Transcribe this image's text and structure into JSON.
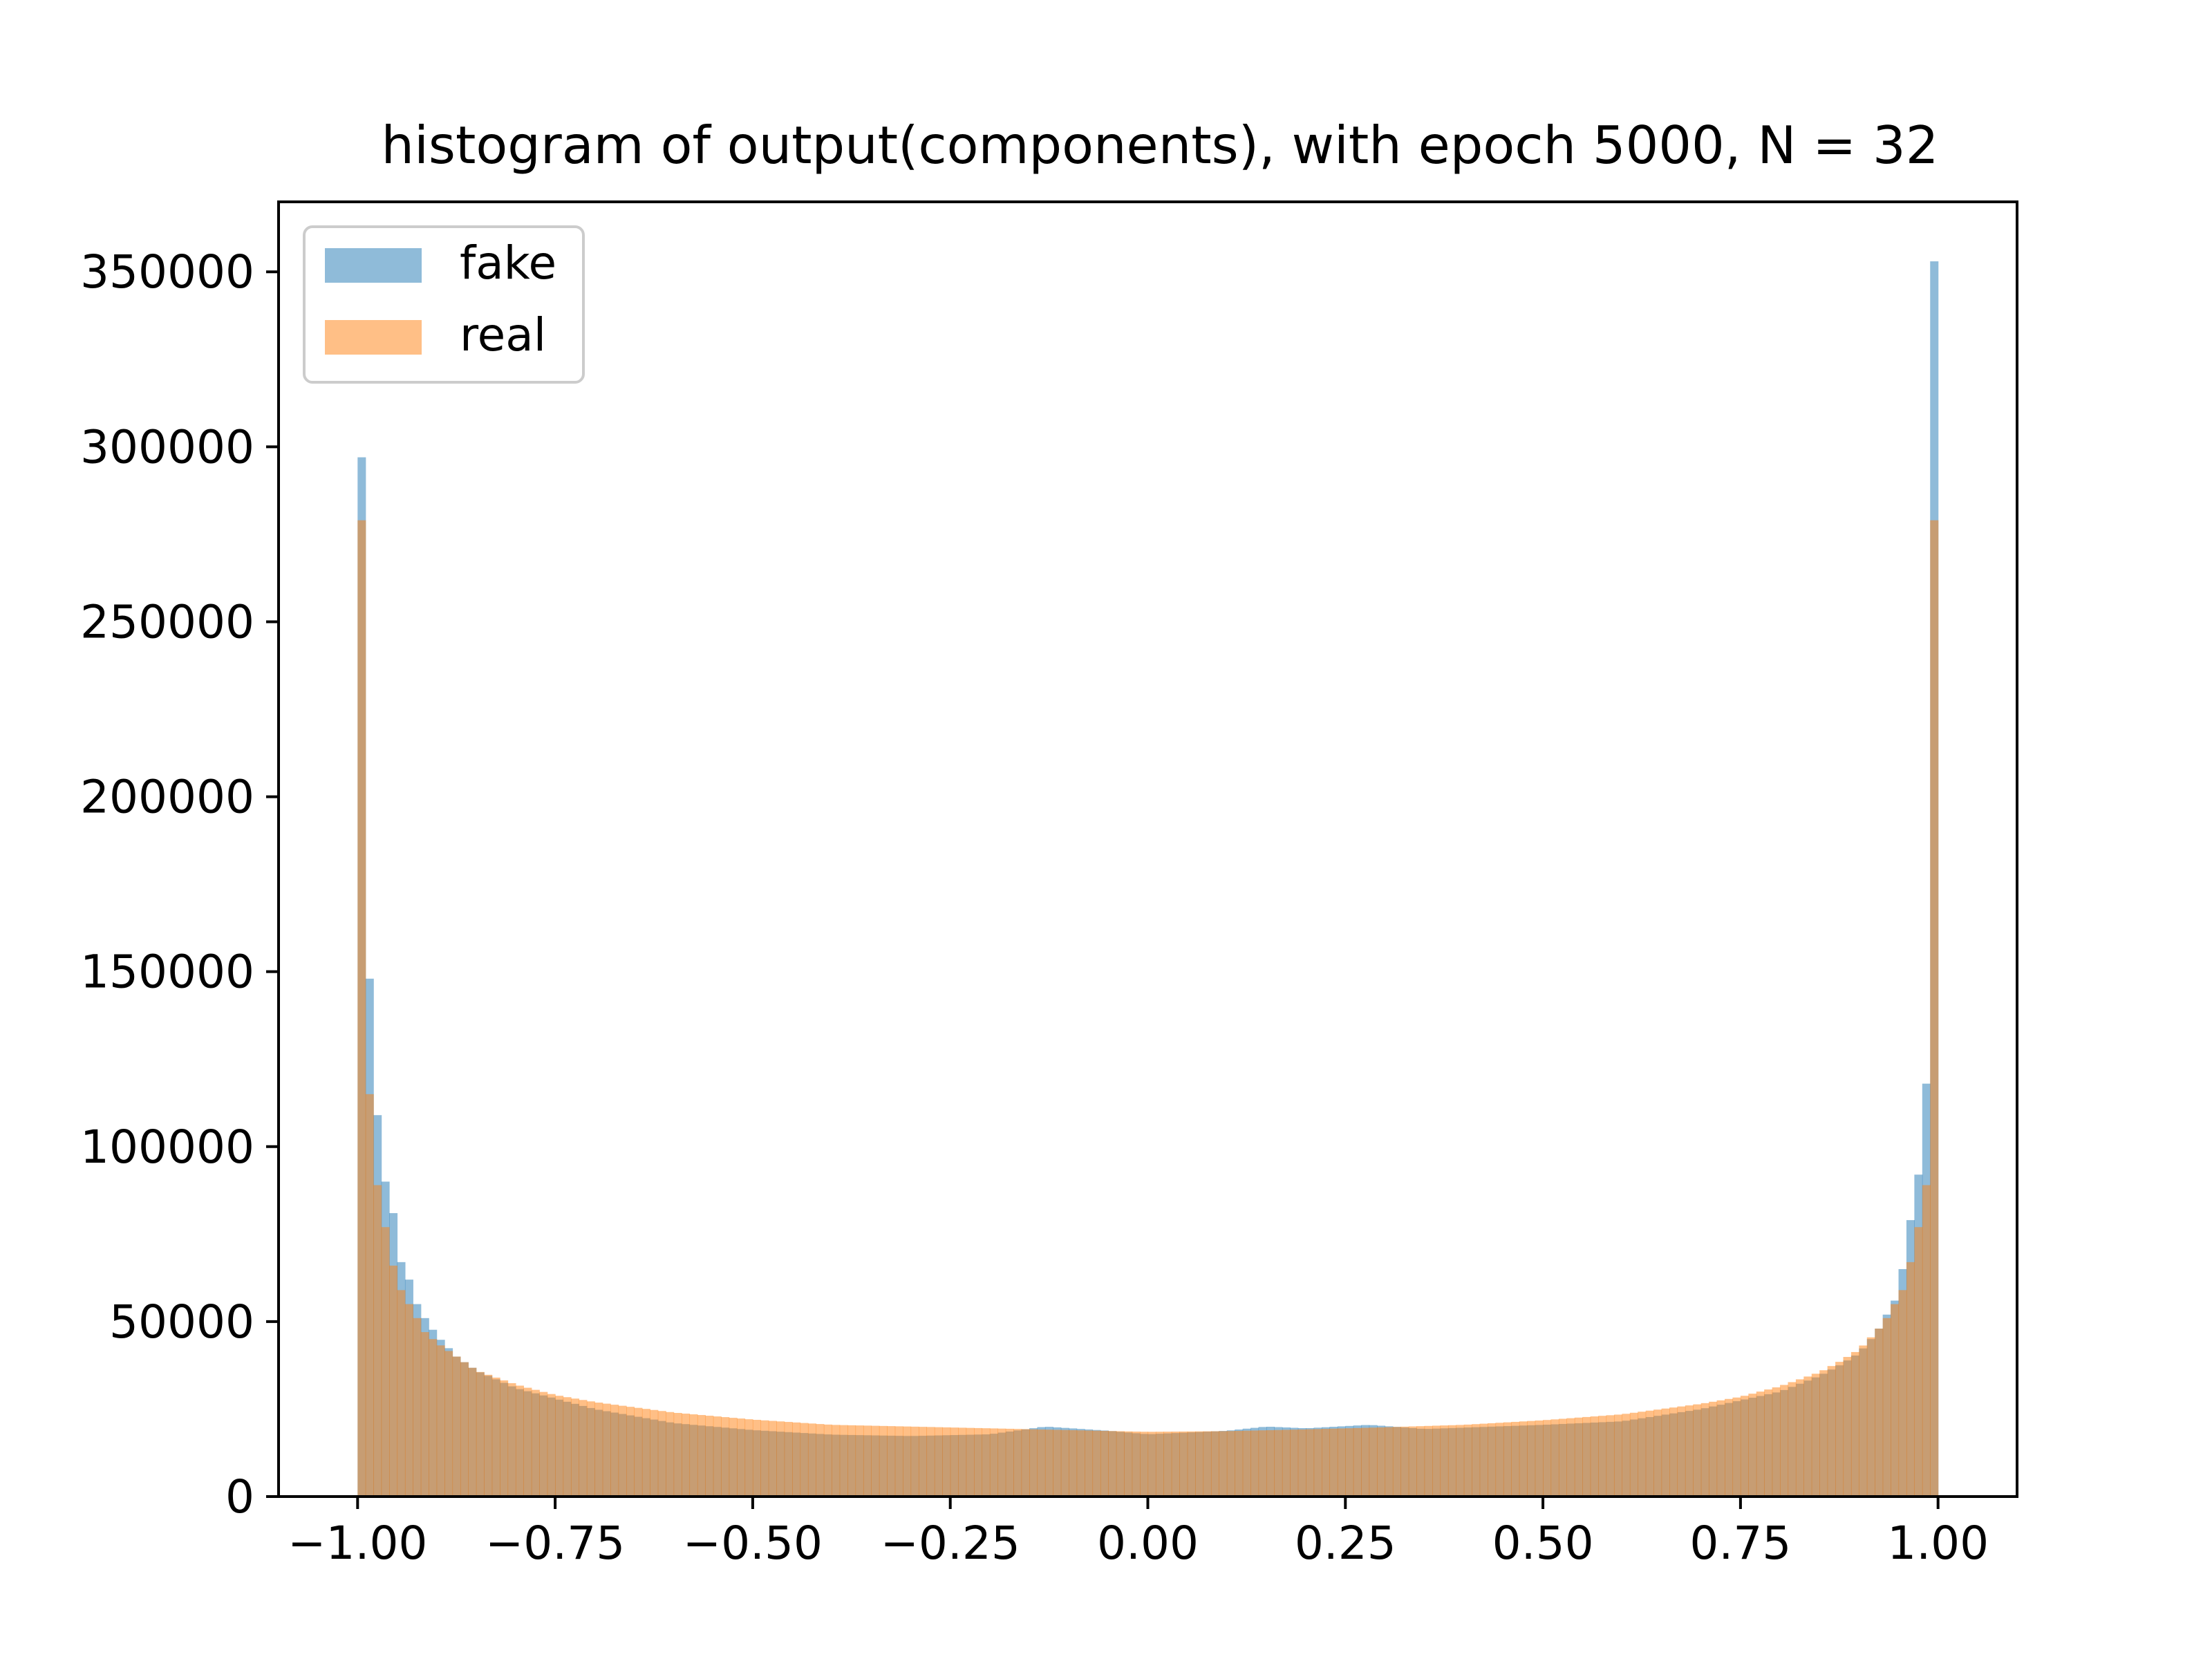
{
  "chart_data": {
    "type": "bar",
    "title": "histogram of output(components), with epoch 5000, N = 32",
    "xlabel": "",
    "ylabel": "",
    "xlim": [
      -1.1,
      1.1
    ],
    "ylim": [
      0,
      370000
    ],
    "bin_range": [
      -1.0,
      1.0
    ],
    "bin_count": 200,
    "grid": false,
    "legend_position": "top-left",
    "x_ticks": [
      -1.0,
      -0.75,
      -0.5,
      -0.25,
      0.0,
      0.25,
      0.5,
      0.75,
      1.0
    ],
    "x_tick_labels": [
      "−1.00",
      "−0.75",
      "−0.50",
      "−0.25",
      "0.00",
      "0.25",
      "0.50",
      "0.75",
      "1.00"
    ],
    "y_ticks": [
      0,
      50000,
      100000,
      150000,
      200000,
      250000,
      300000,
      350000
    ],
    "y_tick_labels": [
      "0",
      "50000",
      "100000",
      "150000",
      "200000",
      "250000",
      "300000",
      "350000"
    ],
    "series": [
      {
        "name": "fake",
        "color": "#1f77b4",
        "opacity": 0.5,
        "curve_points": [
          [
            -0.995,
            297000
          ],
          [
            -0.985,
            148000
          ],
          [
            -0.975,
            109000
          ],
          [
            -0.965,
            90000
          ],
          [
            -0.955,
            81000
          ],
          [
            -0.945,
            67000
          ],
          [
            -0.935,
            62000
          ],
          [
            -0.925,
            55000
          ],
          [
            -0.915,
            51000
          ],
          [
            -0.9,
            46000
          ],
          [
            -0.875,
            40000
          ],
          [
            -0.85,
            36000
          ],
          [
            -0.8,
            31000
          ],
          [
            -0.75,
            28000
          ],
          [
            -0.7,
            25000
          ],
          [
            -0.6,
            21000
          ],
          [
            -0.5,
            19000
          ],
          [
            -0.4,
            17700
          ],
          [
            -0.3,
            17300
          ],
          [
            -0.2,
            17800
          ],
          [
            -0.13,
            20000
          ],
          [
            -0.05,
            18800
          ],
          [
            0.0,
            17800
          ],
          [
            0.1,
            18800
          ],
          [
            0.15,
            20000
          ],
          [
            0.2,
            19500
          ],
          [
            0.28,
            20500
          ],
          [
            0.35,
            19300
          ],
          [
            0.5,
            20500
          ],
          [
            0.6,
            21500
          ],
          [
            0.7,
            25000
          ],
          [
            0.8,
            30000
          ],
          [
            0.85,
            34500
          ],
          [
            0.875,
            37500
          ],
          [
            0.9,
            41000
          ],
          [
            0.915,
            45000
          ],
          [
            0.925,
            48000
          ],
          [
            0.935,
            52000
          ],
          [
            0.945,
            56000
          ],
          [
            0.955,
            65000
          ],
          [
            0.965,
            79000
          ],
          [
            0.975,
            92000
          ],
          [
            0.985,
            118000
          ],
          [
            0.99,
            166000
          ],
          [
            0.995,
            353000
          ]
        ]
      },
      {
        "name": "real",
        "color": "#ff7f0e",
        "opacity": 0.5,
        "curve_points": [
          [
            -0.995,
            279000
          ],
          [
            -0.985,
            115000
          ],
          [
            -0.975,
            89000
          ],
          [
            -0.965,
            77000
          ],
          [
            -0.955,
            66000
          ],
          [
            -0.945,
            59000
          ],
          [
            -0.935,
            55000
          ],
          [
            -0.925,
            51000
          ],
          [
            -0.915,
            47000
          ],
          [
            -0.9,
            44000
          ],
          [
            -0.875,
            40000
          ],
          [
            -0.85,
            36000
          ],
          [
            -0.8,
            32000
          ],
          [
            -0.75,
            29000
          ],
          [
            -0.7,
            27000
          ],
          [
            -0.6,
            24000
          ],
          [
            -0.5,
            22000
          ],
          [
            -0.4,
            20500
          ],
          [
            -0.3,
            20000
          ],
          [
            -0.2,
            19500
          ],
          [
            -0.1,
            19000
          ],
          [
            0.0,
            18500
          ],
          [
            0.1,
            18700
          ],
          [
            0.2,
            19200
          ],
          [
            0.3,
            19800
          ],
          [
            0.4,
            20500
          ],
          [
            0.5,
            21800
          ],
          [
            0.6,
            23500
          ],
          [
            0.7,
            26500
          ],
          [
            0.75,
            28500
          ],
          [
            0.8,
            31500
          ],
          [
            0.85,
            35500
          ],
          [
            0.875,
            38500
          ],
          [
            0.9,
            42000
          ],
          [
            0.915,
            45500
          ],
          [
            0.925,
            48000
          ],
          [
            0.935,
            51000
          ],
          [
            0.945,
            55000
          ],
          [
            0.955,
            59000
          ],
          [
            0.965,
            67000
          ],
          [
            0.975,
            77000
          ],
          [
            0.985,
            89000
          ],
          [
            0.99,
            115000
          ],
          [
            0.995,
            279000
          ]
        ]
      }
    ]
  }
}
